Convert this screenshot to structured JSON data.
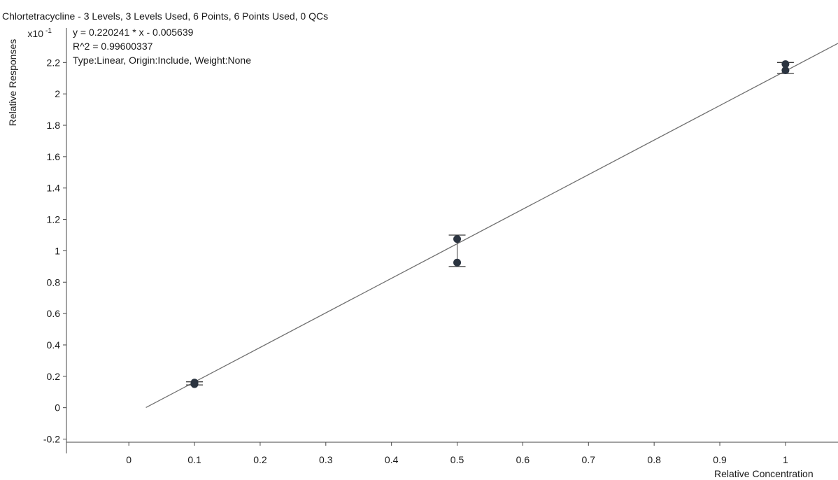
{
  "title": "Chlortetracycline - 3 Levels, 3 Levels Used, 6 Points, 6 Points Used, 0 QCs",
  "annotations": [
    "y = 0.220241 * x  - 0.005639",
    "R^2 = 0.99600337",
    "Type:Linear, Origin:Include, Weight:None"
  ],
  "chart_data": {
    "type": "scatter",
    "xlabel": "Relative Concentration",
    "ylabel": "Relative Responses",
    "y_multiplier": "x10",
    "y_multiplier_exp": "-1",
    "xlim": [
      -0.095,
      1.08
    ],
    "ylim": [
      -0.22,
      2.42
    ],
    "x_ticks": [
      0,
      0.1,
      0.2,
      0.3,
      0.4,
      0.5,
      0.6,
      0.7,
      0.8,
      0.9,
      1
    ],
    "x_tick_labels": [
      "0",
      "0.1",
      "0.2",
      "0.3",
      "0.4",
      "0.5",
      "0.6",
      "0.7",
      "0.8",
      "0.9",
      "1"
    ],
    "y_ticks": [
      -0.2,
      0,
      0.2,
      0.4,
      0.6,
      0.8,
      1,
      1.2,
      1.4,
      1.6,
      1.8,
      2,
      2.2
    ],
    "y_tick_labels": [
      "-0.2",
      "0",
      "0.2",
      "0.4",
      "0.6",
      "0.8",
      "1",
      "1.2",
      "1.4",
      "1.6",
      "1.8",
      "2",
      "2.2"
    ],
    "points": [
      {
        "x": 0.1,
        "y": 0.15
      },
      {
        "x": 0.1,
        "y": 0.16
      },
      {
        "x": 0.5,
        "y": 1.075
      },
      {
        "x": 0.5,
        "y": 0.925
      },
      {
        "x": 1.0,
        "y": 2.15
      },
      {
        "x": 1.0,
        "y": 2.19
      }
    ],
    "error_bars": [
      {
        "x": 0.1,
        "low": 0.145,
        "high": 0.165
      },
      {
        "x": 0.5,
        "low": 0.9,
        "high": 1.1
      },
      {
        "x": 1.0,
        "low": 2.13,
        "high": 2.2
      }
    ],
    "fit": {
      "slope": 2.20241,
      "intercept": -0.05639,
      "x_start": 0.026,
      "x_end": 1.08
    },
    "colors": {
      "points": "#2b3440",
      "line": "#707070",
      "axis": "#444444"
    }
  }
}
